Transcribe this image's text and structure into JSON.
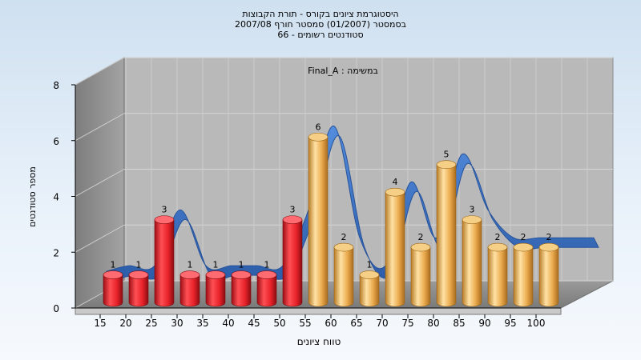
{
  "title_lines": [
    "היסטוגרמת ציונים בקורס - תורת הקבוצות",
    "בסמסטר  (01/2007)  סמסטר חורף 2007/08",
    "סטודנטים רשומים - 66"
  ],
  "colors": {
    "fail_bar": "#e8222a",
    "pass_bar": "#e9a94c",
    "curve": "#2f6fc7",
    "wall_left": "#8f8f8f",
    "wall_back": "#b9b9b9",
    "floor": "#8a8a8a"
  },
  "chart_data": {
    "type": "bar",
    "subtitle": "במשימה : Final_A",
    "xlabel": "טווח ציונים",
    "ylabel": "מספר סטודנטים",
    "categories": [
      "15",
      "20",
      "25",
      "30",
      "35",
      "40",
      "45",
      "50",
      "55",
      "60",
      "65",
      "70",
      "75",
      "80",
      "85",
      "90",
      "95",
      "100"
    ],
    "values": [
      1,
      1,
      3,
      1,
      1,
      1,
      1,
      3,
      6,
      2,
      1,
      4,
      2,
      5,
      3,
      2,
      2,
      2
    ],
    "ylim": [
      0,
      8
    ],
    "yticks": [
      0,
      2,
      4,
      6,
      8
    ],
    "pass_threshold_category": "55",
    "grid": true
  }
}
